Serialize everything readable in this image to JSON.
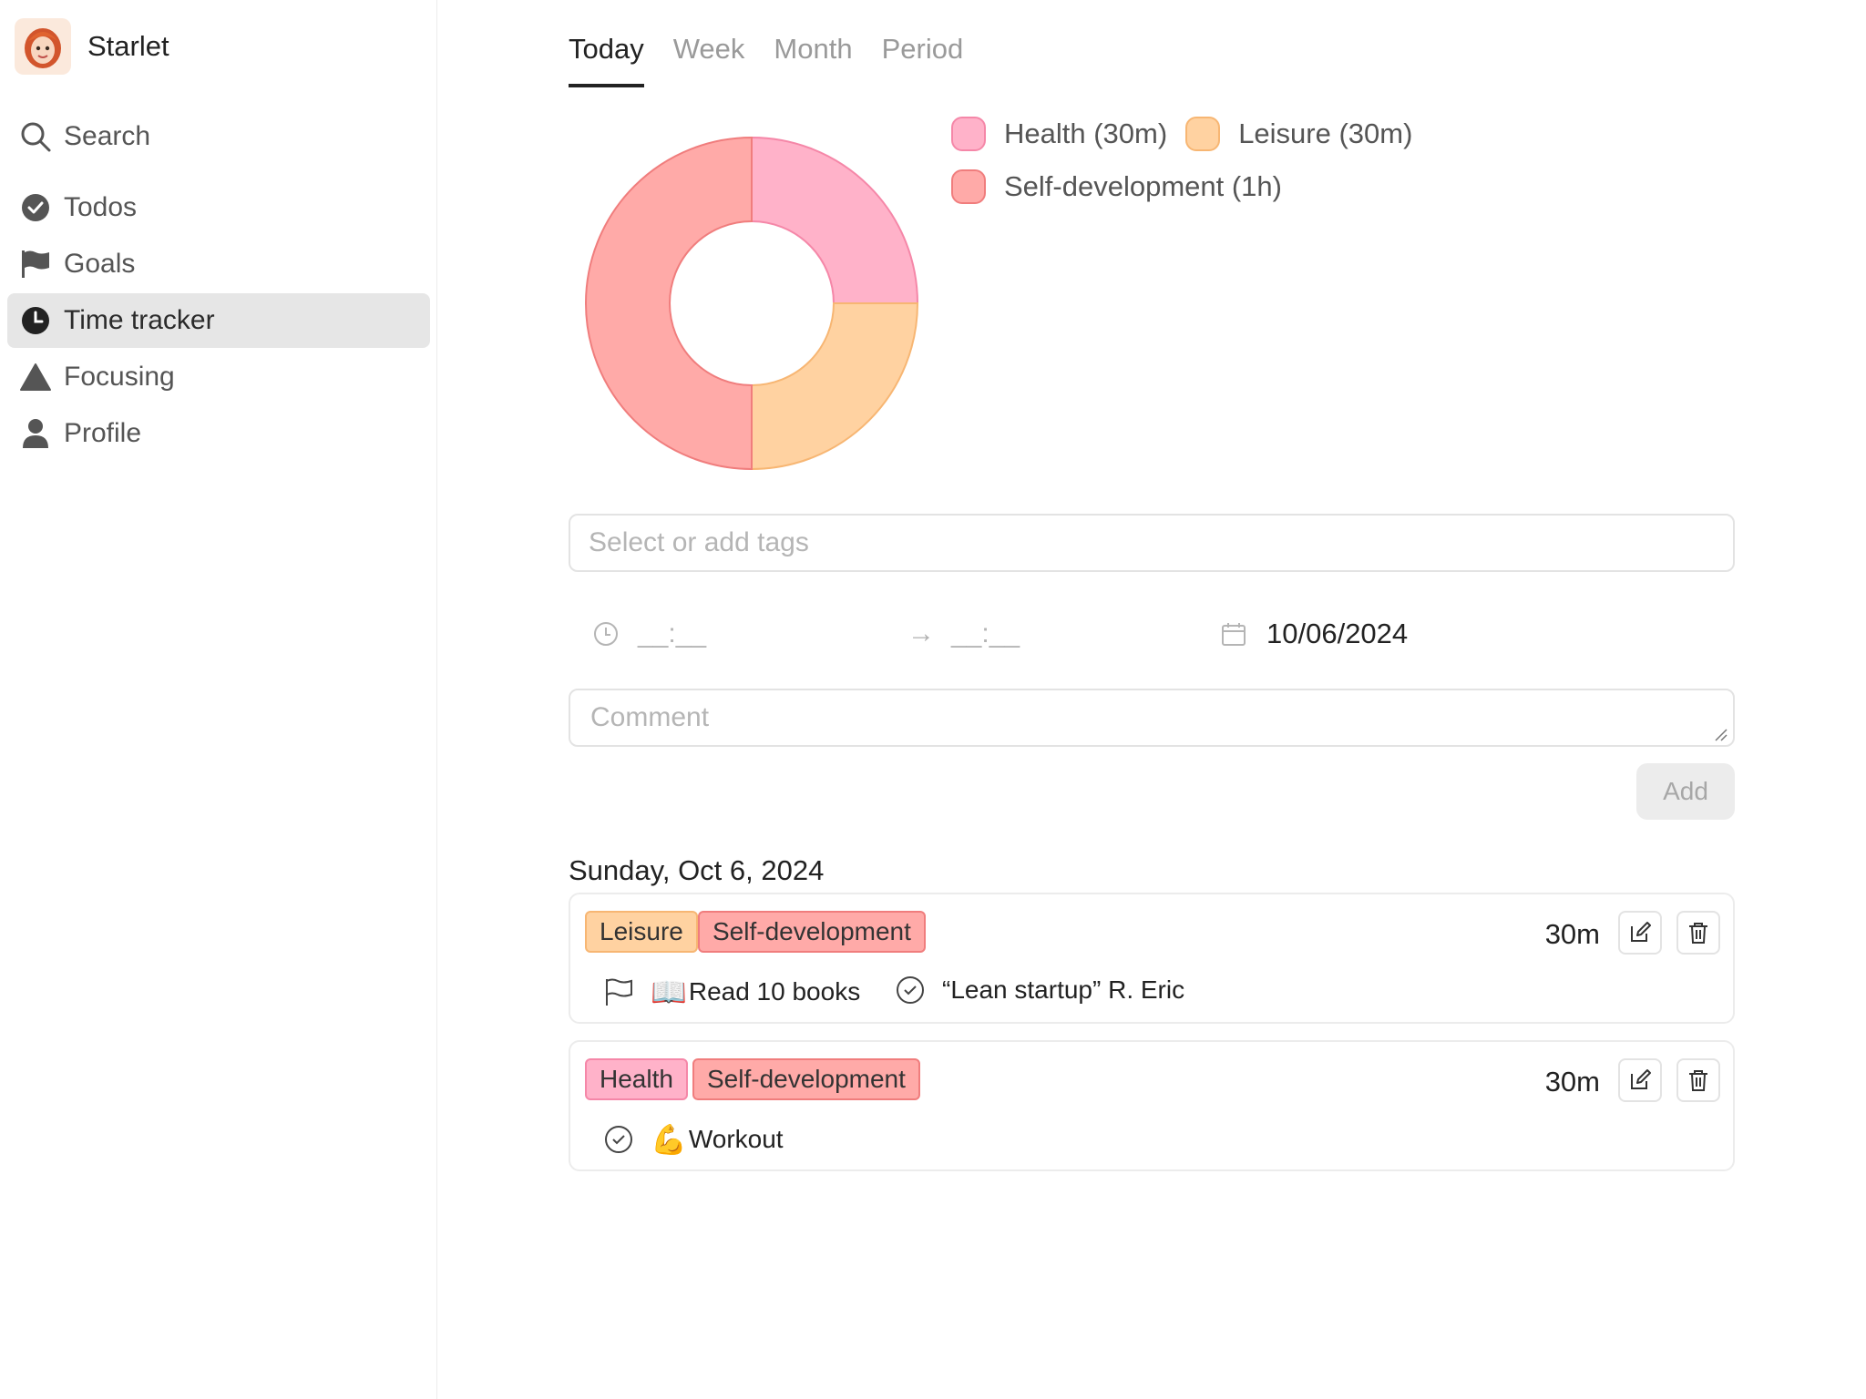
{
  "app": {
    "name": "Starlet"
  },
  "nav": {
    "search": "Search",
    "todos": "Todos",
    "goals": "Goals",
    "time_tracker": "Time tracker",
    "focusing": "Focusing",
    "profile": "Profile"
  },
  "tabs": [
    "Today",
    "Week",
    "Month",
    "Period"
  ],
  "active_tab": "Today",
  "chart_data": {
    "type": "pie",
    "donut": true,
    "categories": [
      "Health",
      "Leisure",
      "Self-development"
    ],
    "values": [
      30,
      30,
      60
    ],
    "unit": "minutes",
    "colors": [
      "#ffb2c9",
      "#ffd2a1",
      "#ffaaa8"
    ],
    "legend": [
      "Health (30m)",
      "Leisure (30m)",
      "Self-development (1h)"
    ],
    "legend_position": "right"
  },
  "form": {
    "tags_placeholder": "Select or add tags",
    "start_placeholder": "__:__",
    "arrow": "→",
    "end_placeholder": "__:__",
    "date": "10/06/2024",
    "comment_placeholder": "Comment",
    "add_label": "Add"
  },
  "day_heading": "Sunday, Oct 6, 2024",
  "entries": [
    {
      "tags": [
        "Leisure",
        "Self-development"
      ],
      "duration": "30m",
      "goal": "Read 10 books",
      "goal_emoji": "📖",
      "todo": "“Lean startup” R. Eric"
    },
    {
      "tags": [
        "Health",
        "Self-development"
      ],
      "duration": "30m",
      "todo": "Workout",
      "todo_emoji": "💪"
    }
  ],
  "colors": {
    "health": "#ffb2c9",
    "leisure": "#ffd2a1",
    "self_development": "#ffaaa8",
    "active_nav_bg": "#e6e6e6"
  }
}
